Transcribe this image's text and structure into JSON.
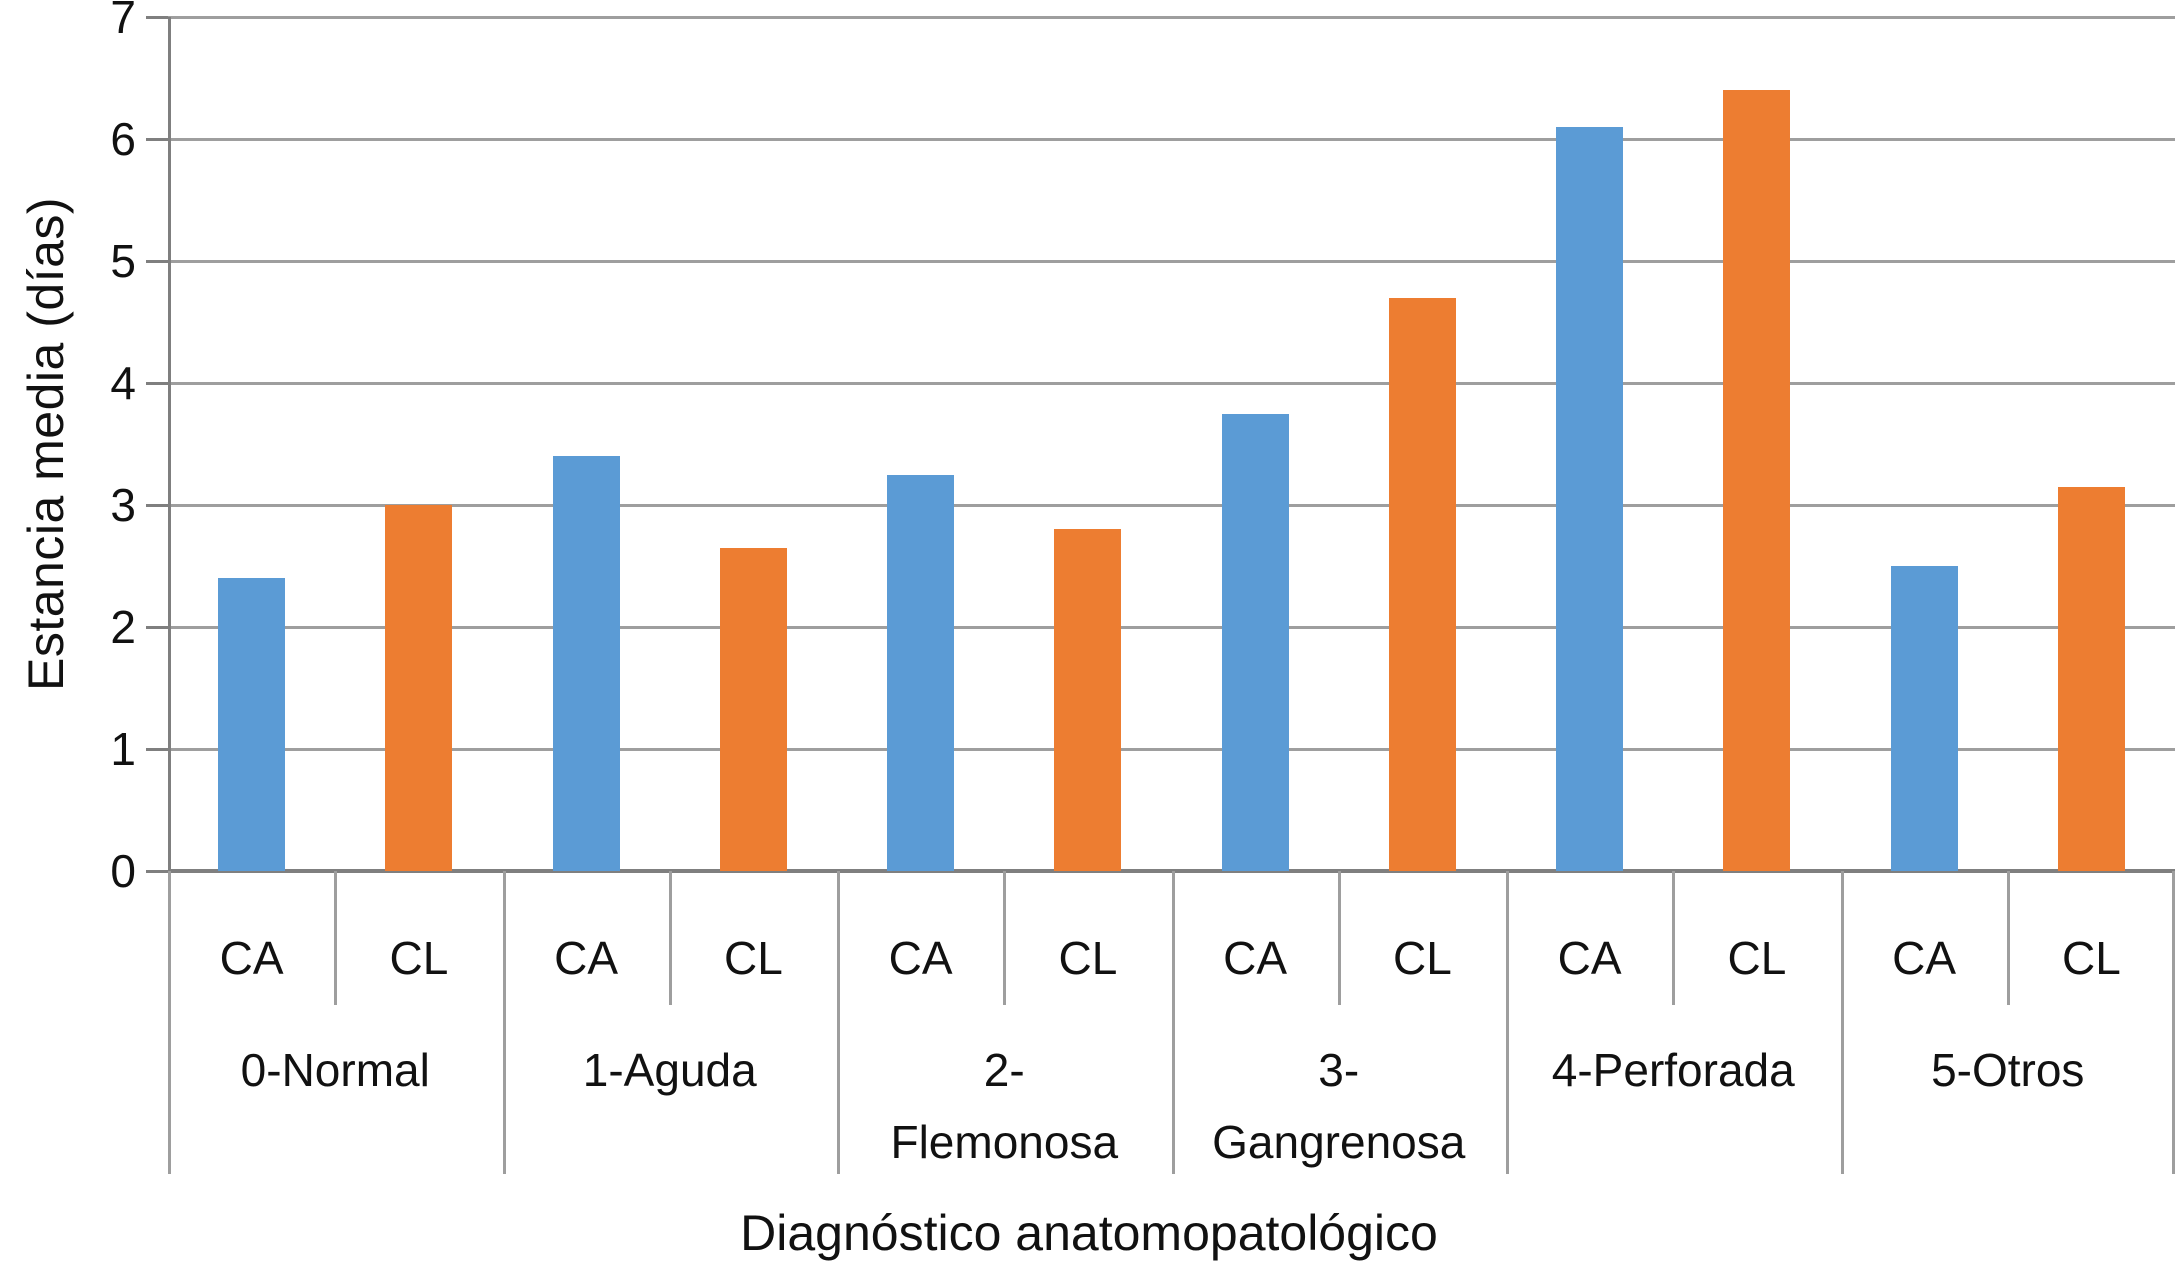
{
  "chart_data": {
    "type": "bar",
    "title": "",
    "xlabel": "Diagnóstico anatomopatológico",
    "ylabel": "Estancia media (días)",
    "ylim": [
      0,
      7
    ],
    "yticks": [
      0,
      1,
      2,
      3,
      4,
      5,
      6,
      7
    ],
    "grid": true,
    "legend_position": "none",
    "categories": [
      "0-Normal",
      "1-Aguda",
      "2-Flemonosa",
      "3-Gangrenosa",
      "4-Perforada",
      "5-Otros"
    ],
    "category_label_lines": [
      [
        "0-Normal"
      ],
      [
        "1-Aguda"
      ],
      [
        "2-",
        "Flemonosa"
      ],
      [
        "3-",
        "Gangrenosa"
      ],
      [
        "4-Perforada"
      ],
      [
        "5-Otros"
      ]
    ],
    "bar_sublabels": [
      "CA",
      "CL"
    ],
    "series": [
      {
        "name": "CA",
        "color": "#5B9BD5",
        "values": [
          2.4,
          3.4,
          3.25,
          3.75,
          6.1,
          2.5
        ]
      },
      {
        "name": "CL",
        "color": "#ED7D31",
        "values": [
          3.0,
          2.65,
          2.8,
          4.7,
          6.4,
          3.15
        ]
      }
    ]
  },
  "style": {
    "grid_color": "#9E9E9E",
    "axis_color": "#7F7F7F",
    "text_color": "#111111",
    "background": "#FFFFFF"
  }
}
